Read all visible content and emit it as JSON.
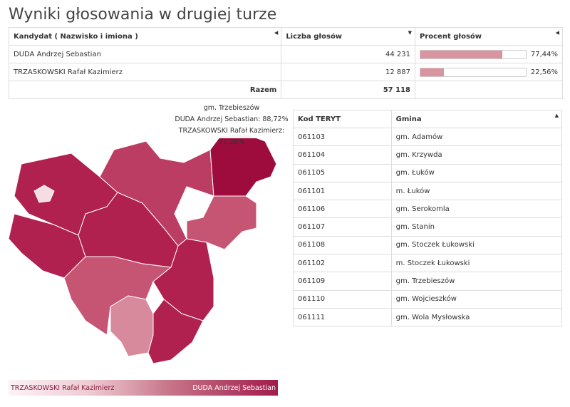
{
  "title": "Wyniki głosowania w drugiej turze",
  "results": {
    "headers": {
      "candidate": "Kandydat ( Nazwisko i imiona )",
      "votes": "Liczba głosów",
      "percent": "Procent głosów"
    },
    "sort_icons": [
      "◀",
      "▼",
      "◀"
    ],
    "rows": [
      {
        "name": "DUDA Andrzej Sebastian",
        "votes": "44 231",
        "percent": "77,44%",
        "share": 77.44
      },
      {
        "name": "TRZASKOWSKI Rafał Kazimierz",
        "votes": "12 887",
        "percent": "22,56%",
        "share": 22.56
      }
    ],
    "total_label": "Razem",
    "total_votes": "57 118"
  },
  "gminy": {
    "headers": {
      "teryt": "Kod TERYT",
      "gmina": "Gmina"
    },
    "sort_icon": "▲",
    "rows": [
      {
        "teryt": "061103",
        "gmina": "gm. Adamów"
      },
      {
        "teryt": "061104",
        "gmina": "gm. Krzywda"
      },
      {
        "teryt": "061105",
        "gmina": "gm. Łuków"
      },
      {
        "teryt": "061101",
        "gmina": "m. Łuków"
      },
      {
        "teryt": "061106",
        "gmina": "gm. Serokomla"
      },
      {
        "teryt": "061107",
        "gmina": "gm. Stanin"
      },
      {
        "teryt": "061108",
        "gmina": "gm. Stoczek Łukowski"
      },
      {
        "teryt": "061102",
        "gmina": "m. Stoczek Łukowski"
      },
      {
        "teryt": "061109",
        "gmina": "gm. Trzebieszów"
      },
      {
        "teryt": "061110",
        "gmina": "gm. Wojcieszków"
      },
      {
        "teryt": "061111",
        "gmina": "gm. Wola Mysłowska"
      }
    ]
  },
  "tooltip": {
    "line1": "gm. Trzebieszów",
    "line2": "DUDA Andrzej Sebastian: 88,72%",
    "line3": "TRZASKOWSKI Rafał Kazimierz: 11,28%"
  },
  "legend": {
    "left": "TRZASKOWSKI Rafał Kazimierz",
    "right": "DUDA Andrzej Sebastian"
  },
  "colors": {
    "darkest": "#9e0c3e",
    "dark": "#b0214f",
    "medium_dark": "#bc3d64",
    "medium": "#c65574",
    "light": "#d88a9d",
    "lightest": "#f4dde3",
    "bar_fill": "#d9949f"
  }
}
